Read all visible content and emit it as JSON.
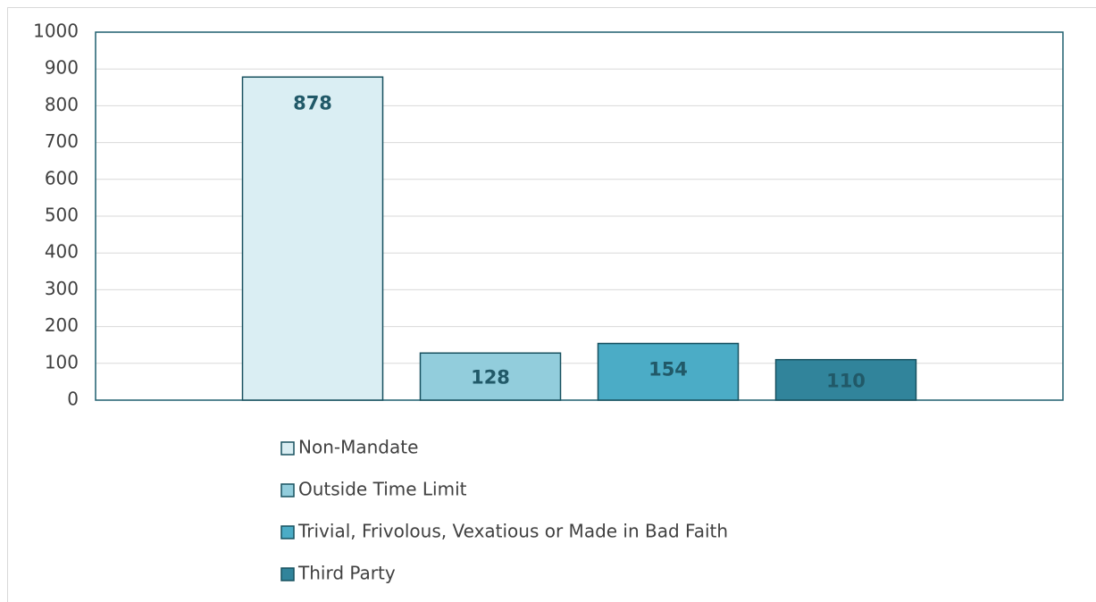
{
  "chart_data": {
    "type": "bar",
    "series": [
      {
        "name": "Non-Mandate",
        "color": "#daeef3",
        "values": [
          878
        ]
      },
      {
        "name": "Outside Time Limit",
        "color": "#92cddc",
        "values": [
          128
        ]
      },
      {
        "name": "Trivial, Frivolous, Vexatious or Made in Bad Faith",
        "color": "#4bacc6",
        "values": [
          154
        ]
      },
      {
        "name": "Third Party",
        "color": "#31849b",
        "values": [
          110
        ]
      }
    ],
    "ylim": [
      0,
      1000
    ],
    "yticks": [
      0,
      100,
      200,
      300,
      400,
      500,
      600,
      700,
      800,
      900,
      1000
    ],
    "grid": true,
    "legend": "bottom"
  }
}
